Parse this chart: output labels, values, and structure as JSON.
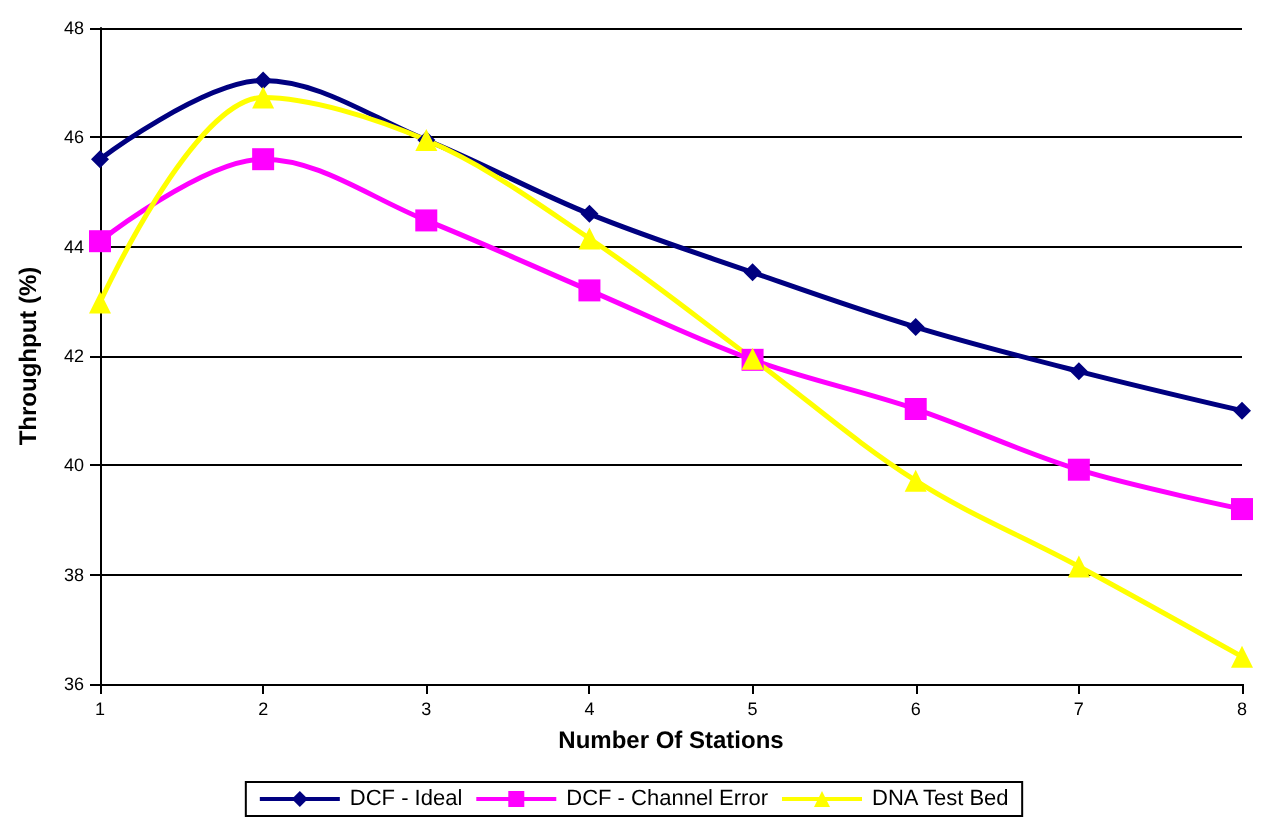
{
  "chart_data": {
    "type": "line",
    "xlabel": "Number Of Stations",
    "ylabel": "Throughput (%)",
    "categories": [
      "1",
      "2",
      "3",
      "4",
      "5",
      "6",
      "7",
      "8"
    ],
    "series": [
      {
        "name": "DCF - Ideal",
        "color": "#000080",
        "marker": "diamond",
        "values": [
          45.6,
          47.04,
          45.95,
          44.6,
          43.53,
          42.53,
          41.72,
          41.0
        ]
      },
      {
        "name": "DCF - Channel Error",
        "color": "#ff00ff",
        "marker": "square",
        "values": [
          44.1,
          45.6,
          44.48,
          43.2,
          41.93,
          41.03,
          39.92,
          39.2
        ]
      },
      {
        "name": "DNA Test Bed",
        "color": "#ffff00",
        "marker": "triangle",
        "values": [
          42.98,
          46.73,
          45.95,
          44.15,
          41.95,
          39.72,
          38.15,
          36.5
        ]
      }
    ],
    "ylim": [
      36,
      48
    ],
    "yticks": [
      36,
      38,
      40,
      42,
      44,
      46,
      48
    ],
    "grid": "y",
    "legend": "bottom"
  }
}
